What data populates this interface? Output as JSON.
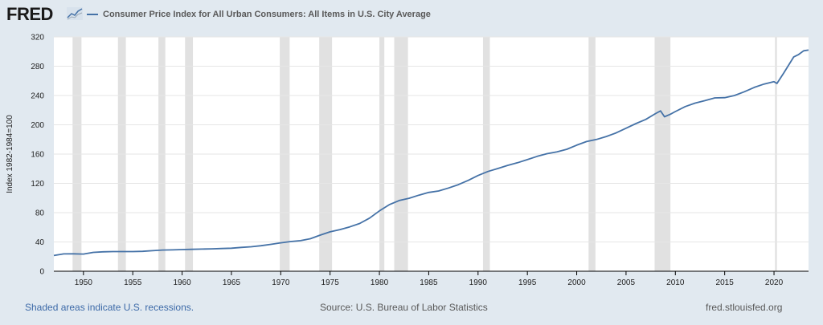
{
  "header": {
    "logo_text": "FRED",
    "legend_label": "Consumer Price Index for All Urban Consumers: All Items in U.S. City Average"
  },
  "footer": {
    "recession_note": "Shaded areas indicate U.S. recessions.",
    "source": "Source: U.S. Bureau of Labor Statistics",
    "site": "fred.stlouisfed.org"
  },
  "colors": {
    "series": "#4572a7",
    "recession": "#e1e1e1",
    "background": "#e1e9f0",
    "plot_background": "#ffffff"
  },
  "chart_data": {
    "type": "line",
    "title": "",
    "xlabel": "",
    "ylabel": "Index 1982-1984=100",
    "xlim": [
      1947,
      2023.5
    ],
    "ylim": [
      0,
      320
    ],
    "yticks": [
      0,
      40,
      80,
      120,
      160,
      200,
      240,
      280,
      320
    ],
    "xticks": [
      1950,
      1955,
      1960,
      1965,
      1970,
      1975,
      1980,
      1985,
      1990,
      1995,
      2000,
      2005,
      2010,
      2015,
      2020
    ],
    "grid": "horizontal",
    "legend_placement": "top-left",
    "recessions": [
      [
        1948.9,
        1949.8
      ],
      [
        1953.5,
        1954.3
      ],
      [
        1957.6,
        1958.3
      ],
      [
        1960.3,
        1961.1
      ],
      [
        1969.9,
        1970.9
      ],
      [
        1973.9,
        1975.2
      ],
      [
        1980.0,
        1980.5
      ],
      [
        1981.5,
        1982.9
      ],
      [
        1990.5,
        1991.2
      ],
      [
        2001.2,
        2001.9
      ],
      [
        2007.9,
        2009.5
      ],
      [
        2020.1,
        2020.3
      ]
    ],
    "series": [
      {
        "name": "Consumer Price Index for All Urban Consumers: All Items in U.S. City Average",
        "x": [
          1947,
          1948,
          1949,
          1950,
          1951,
          1952,
          1953,
          1954,
          1955,
          1956,
          1957,
          1958,
          1959,
          1960,
          1961,
          1962,
          1963,
          1964,
          1965,
          1966,
          1967,
          1968,
          1969,
          1970,
          1971,
          1972,
          1973,
          1974,
          1975,
          1976,
          1977,
          1978,
          1979,
          1980,
          1981,
          1982,
          1983,
          1984,
          1985,
          1986,
          1987,
          1988,
          1989,
          1990,
          1991,
          1992,
          1993,
          1994,
          1995,
          1996,
          1997,
          1998,
          1999,
          2000,
          2001,
          2002,
          2003,
          2004,
          2005,
          2006,
          2007,
          2008,
          2008.5,
          2008.9,
          2009.5,
          2010,
          2011,
          2012,
          2013,
          2014,
          2015,
          2016,
          2017,
          2018,
          2019,
          2020,
          2020.3,
          2021,
          2022,
          2022.5,
          2023,
          2023.5
        ],
        "y": [
          21.5,
          23.7,
          23.8,
          23.5,
          25.8,
          26.5,
          26.8,
          26.9,
          26.8,
          27.2,
          28.1,
          28.9,
          29.2,
          29.6,
          29.9,
          30.3,
          30.6,
          31.0,
          31.5,
          32.5,
          33.4,
          34.8,
          36.7,
          38.8,
          40.5,
          41.8,
          44.4,
          49.3,
          53.8,
          56.9,
          60.6,
          65.2,
          72.6,
          82.4,
          90.9,
          96.5,
          99.6,
          103.9,
          107.6,
          109.6,
          113.6,
          118.3,
          124.0,
          130.7,
          136.2,
          140.3,
          144.5,
          148.2,
          152.4,
          156.9,
          160.5,
          163.0,
          166.6,
          172.2,
          177.1,
          179.9,
          184.0,
          188.9,
          195.3,
          201.6,
          207.3,
          215.3,
          219.0,
          211.0,
          214.5,
          218.1,
          224.9,
          229.6,
          233.0,
          236.7,
          237.0,
          240.0,
          245.1,
          251.1,
          255.7,
          258.8,
          256.4,
          271.0,
          292.7,
          296.0,
          301.0,
          302.0
        ]
      }
    ]
  }
}
